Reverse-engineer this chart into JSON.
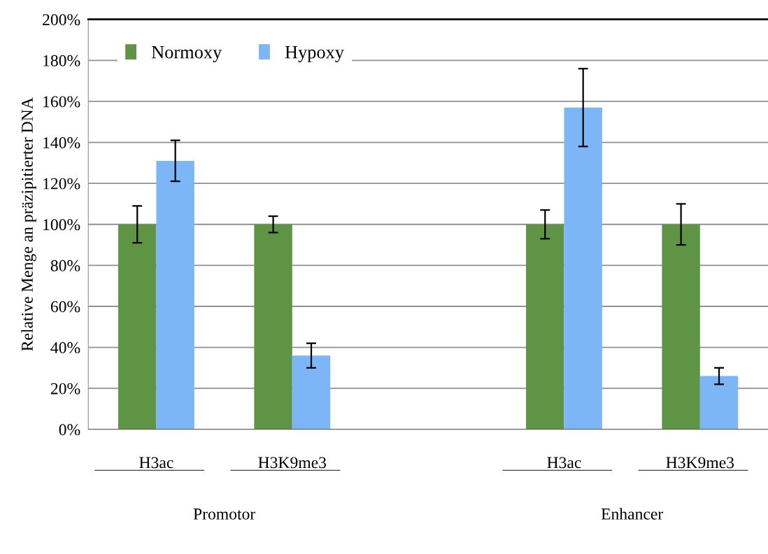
{
  "chart_data": {
    "type": "bar",
    "ylabel": "Relative Menge an präzipitierter DNA",
    "categories": [
      "H3ac",
      "H3K9me3",
      null,
      "H3ac",
      "H3K9me3"
    ],
    "series": [
      {
        "name": "Normoxy",
        "color": "#5e9444",
        "values": [
          100,
          100,
          null,
          100,
          100
        ],
        "errors": [
          9,
          4,
          null,
          7,
          10
        ]
      },
      {
        "name": "Hypoxy",
        "color": "#7db6f6",
        "values": [
          131,
          36,
          null,
          157,
          26
        ],
        "errors": [
          10,
          6,
          null,
          19,
          4
        ]
      }
    ],
    "ylim": [
      0,
      200
    ],
    "yticks": [
      {
        "value": 0,
        "label": "0%"
      },
      {
        "value": 20,
        "label": "20%"
      },
      {
        "value": 40,
        "label": "40%"
      },
      {
        "value": 60,
        "label": "60%"
      },
      {
        "value": 80,
        "label": "80%"
      },
      {
        "value": 100,
        "label": "100%"
      },
      {
        "value": 120,
        "label": "120%"
      },
      {
        "value": 140,
        "label": "140%"
      },
      {
        "value": 160,
        "label": "160%"
      },
      {
        "value": 180,
        "label": "180%"
      },
      {
        "value": 200,
        "label": "200%"
      }
    ],
    "grid": "y",
    "legend": "top left",
    "annotations": [
      "Promotor",
      "Enhancer"
    ]
  }
}
